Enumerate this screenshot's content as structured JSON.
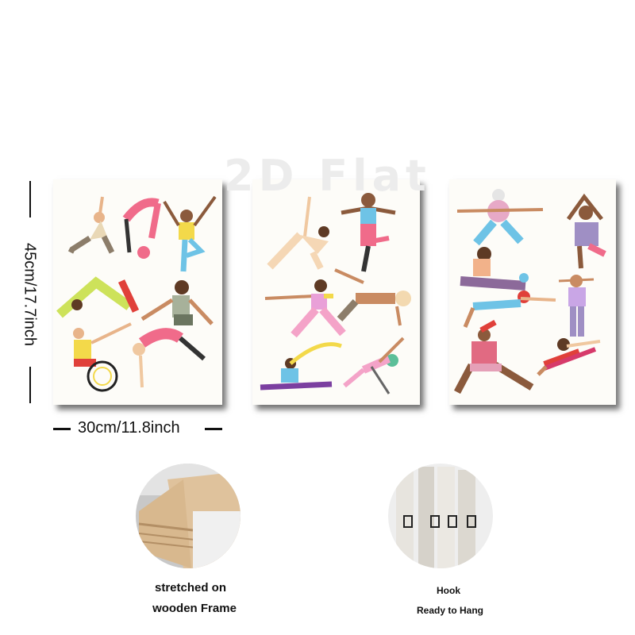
{
  "watermark": "2D Flat",
  "dimensions": {
    "height_label": "45cm/17.7inch",
    "width_label": "30cm/11.8inch"
  },
  "panels": [
    {
      "name": "panel-1"
    },
    {
      "name": "panel-2"
    },
    {
      "name": "panel-3"
    }
  ],
  "details": {
    "frame_caption_line1": "stretched on",
    "frame_caption_line2": "wooden Frame",
    "hook_caption_line1": "Hook",
    "hook_caption_line2": "Ready to Hang"
  },
  "colors": {
    "skin_tones": [
      "#e8b48a",
      "#8b5a3c",
      "#c98b62",
      "#5e3a24",
      "#f0c8a0"
    ],
    "palette": [
      "#f06b8a",
      "#6ec3e6",
      "#f3d94a",
      "#9f8fc4",
      "#b9a98c",
      "#e9d8b6",
      "#6b6b6b"
    ]
  }
}
